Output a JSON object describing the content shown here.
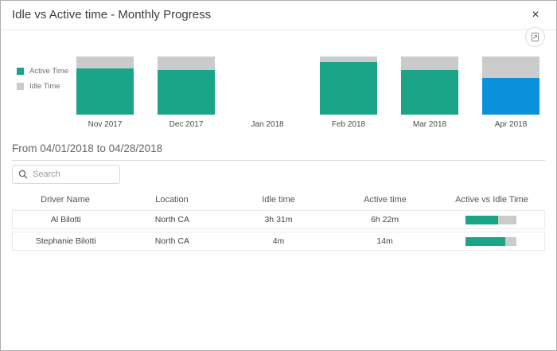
{
  "modal": {
    "title": "Idle vs Active time - Monthly Progress",
    "close_label": "×"
  },
  "toolbar": {
    "export_icon": "export-report-icon"
  },
  "chart_data": {
    "type": "bar",
    "stacked": true,
    "unit": "percent",
    "categories": [
      "Nov 2017",
      "Dec 2017",
      "Jan 2018",
      "Feb 2018",
      "Mar 2018",
      "Apr 2018"
    ],
    "series": [
      {
        "name": "Active Time",
        "color": "#1aa588",
        "values": [
          80,
          77,
          0,
          91,
          77,
          63
        ]
      },
      {
        "name": "Idle Time",
        "color": "#cbcbcb",
        "values": [
          20,
          23,
          0,
          9,
          23,
          37
        ]
      }
    ],
    "highlight": {
      "category": "Apr 2018",
      "series": "Active Time",
      "color": "#0991dc"
    },
    "legend_position": "left",
    "ylim": [
      0,
      100
    ],
    "grid": false
  },
  "period": {
    "label": "From 04/01/2018 to 04/28/2018"
  },
  "search": {
    "placeholder": "Search",
    "value": ""
  },
  "table": {
    "columns": [
      "Driver Name",
      "Location",
      "Idle time",
      "Active time",
      "Active vs Idle Time"
    ],
    "rows": [
      {
        "driver": "Al Bilotti",
        "location": "North CA",
        "idle": "3h 31m",
        "active": "6h 22m",
        "active_pct": 64
      },
      {
        "driver": "Stephanie Bilotti",
        "location": "North CA",
        "idle": "4m",
        "active": "14m",
        "active_pct": 78
      }
    ]
  },
  "colors": {
    "active": "#1aa588",
    "idle": "#cbcbcb",
    "highlight": "#0991dc",
    "idle_text": "#ea815b",
    "active_text": "#1aa588"
  }
}
